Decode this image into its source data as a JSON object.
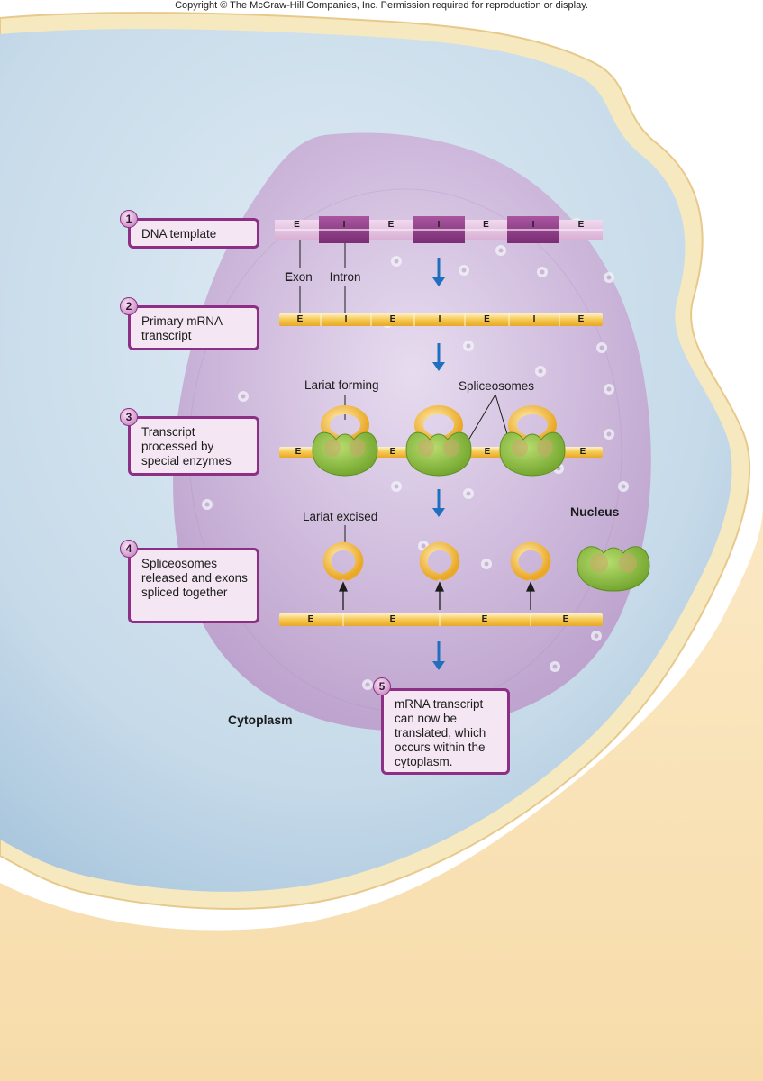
{
  "copyright": "Copyright © The McGraw-Hill Companies, Inc. Permission required for reproduction or display.",
  "steps": [
    {
      "num": "1",
      "text": "DNA template"
    },
    {
      "num": "2",
      "text": "Primary mRNA transcript"
    },
    {
      "num": "3",
      "text": "Transcript processed by special enzymes"
    },
    {
      "num": "4",
      "text": "Spliceosomes released and exons spliced together"
    },
    {
      "num": "5",
      "text": "mRNA transcript can now be translated, which occurs within the cytoplasm."
    }
  ],
  "labels": {
    "exon_initial": "E",
    "exon_rest": "xon",
    "intron_initial": "I",
    "intron_rest": "ntron",
    "lariat_forming": "Lariat forming",
    "spliceosomes": "Spliceosomes",
    "lariat_excised": "Lariat excised",
    "nucleus": "Nucleus",
    "cytoplasm": "Cytoplasm"
  },
  "strand_codes": {
    "exon": "E",
    "intron": "I"
  },
  "dna_sequence": [
    "E",
    "I",
    "E",
    "I",
    "E",
    "I",
    "E"
  ],
  "mrna_sequence": [
    "E",
    "I",
    "E",
    "I",
    "E",
    "I",
    "E"
  ],
  "processed_sequence": [
    "E",
    "E",
    "E",
    "E"
  ],
  "spliced_sequence": [
    "E",
    "E",
    "E",
    "E"
  ],
  "colors": {
    "cell_fill": "#c8dcea",
    "nucleus_fill": "#c2a8d0",
    "membrane": "#f6e6b6",
    "dna_intron": "#8f3c8a",
    "rna_strand": "#f3c55a",
    "spliceosome": "#8fc23b",
    "arrow": "#1f6fbf",
    "box_border": "#8e2f86"
  }
}
